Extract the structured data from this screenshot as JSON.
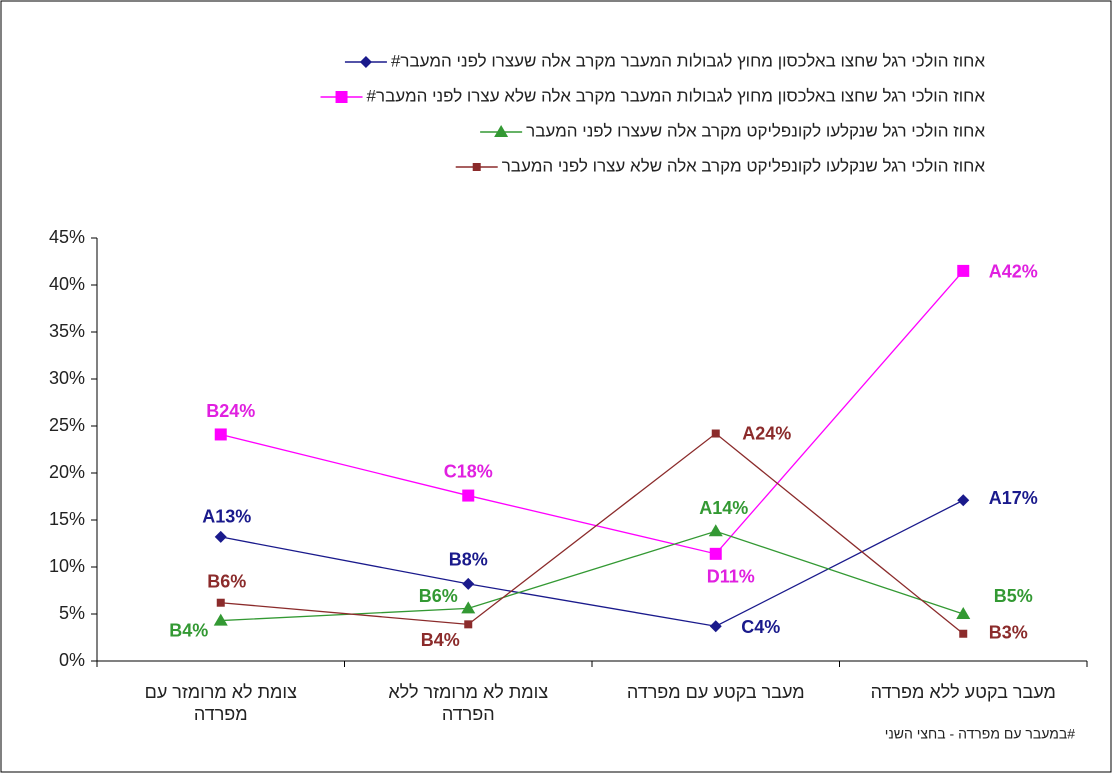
{
  "chart_data": {
    "type": "line",
    "categories": [
      "צומת לא מרומזר עם מפרדה",
      "צומת לא מרומזר ללא הפרדה",
      "מעבר בקטע עם מפרדה",
      "מעבר בקטע ללא מפרדה"
    ],
    "series": [
      {
        "name": "אחוז הולכי רגל שחצו באלכסון מחוץ לגבולות המעבר מקרב אלה שעצרו לפני המעבר#",
        "color": "#1a1a8c",
        "marker": "diamond",
        "values": [
          13.2,
          8.2,
          3.7,
          17.1
        ],
        "value_labels": [
          "A13%",
          "B8%",
          "C4%",
          "A17%"
        ]
      },
      {
        "name": "אחוז הולכי רגל שחצו באלכסון מחוץ לגבולות המעבר מקרב אלה שלא עצרו לפני המעבר#",
        "color": "#ff00ff",
        "marker": "square",
        "values": [
          24.1,
          17.6,
          11.4,
          41.5
        ],
        "value_labels": [
          "B24%",
          "C18%",
          "D11%",
          "A42%"
        ]
      },
      {
        "name": "אחוז הולכי רגל שנקלעו לקונפליקט מקרב אלה שעצרו לפני המעבר",
        "color": "#339933",
        "marker": "triangle",
        "values": [
          4.3,
          5.6,
          13.8,
          5.0
        ],
        "value_labels": [
          "B4%",
          "B6%",
          "A14%",
          "B5%"
        ]
      },
      {
        "name": "אחוז הולכי רגל שנקלעו לקונפליקט מקרב אלה שלא עצרו לפני המעבר",
        "color": "#8b2b2b",
        "marker": "smallsquare",
        "values": [
          6.2,
          3.9,
          24.2,
          2.9
        ],
        "value_labels": [
          "B6%",
          "B4%",
          "A24%",
          "B3%"
        ]
      }
    ],
    "ylim": [
      0,
      45
    ],
    "yticks": [
      {
        "value": 0,
        "label": "0%"
      },
      {
        "value": 5,
        "label": "5%"
      },
      {
        "value": 10,
        "label": "10%"
      },
      {
        "value": 15,
        "label": "15%"
      },
      {
        "value": 20,
        "label": "20%"
      },
      {
        "value": 25,
        "label": "25%"
      },
      {
        "value": 30,
        "label": "30%"
      },
      {
        "value": 35,
        "label": "35%"
      },
      {
        "value": 40,
        "label": "40%"
      },
      {
        "value": 45,
        "label": "45%"
      }
    ],
    "legend": "top",
    "footnote": "#במעבר עם מפרדה - בחצי השני"
  }
}
